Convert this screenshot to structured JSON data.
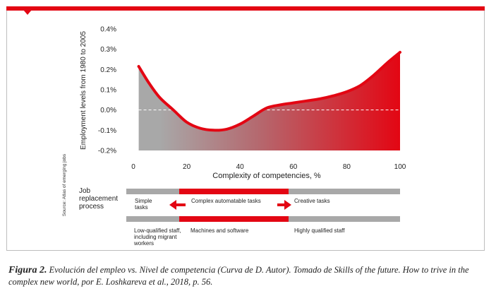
{
  "chart_data": {
    "type": "area",
    "xlabel": "Complexity of competencies, %",
    "ylabel": "Employment levels from 1980 to 2005",
    "xlim": [
      0,
      100
    ],
    "ylim": [
      -0.2,
      0.4
    ],
    "x_ticks": [
      "0",
      "20",
      "40",
      "60",
      "80",
      "100"
    ],
    "y_ticks": [
      "0.4%",
      "0.3%",
      "0.2%",
      "0.1%",
      "0.0%",
      "-0.1%",
      "-0.2%"
    ],
    "x_tick_values": [
      0,
      20,
      40,
      60,
      80,
      100
    ],
    "y_tick_values": [
      0.4,
      0.3,
      0.2,
      0.1,
      0.0,
      -0.1,
      -0.2
    ],
    "series": [
      {
        "x": [
          2,
          6,
          10,
          15,
          20,
          25,
          30,
          35,
          40,
          45,
          50,
          55,
          60,
          65,
          70,
          75,
          80,
          85,
          90,
          95,
          100
        ],
        "y": [
          0.215,
          0.13,
          0.06,
          0.0,
          -0.06,
          -0.09,
          -0.1,
          -0.095,
          -0.07,
          -0.03,
          0.01,
          0.025,
          0.035,
          0.045,
          0.055,
          0.07,
          0.09,
          0.12,
          0.17,
          0.23,
          0.285
        ]
      }
    ],
    "colors": {
      "low": "#a8a8a8",
      "high": "#e30613",
      "baseline": "#ffffff"
    }
  },
  "source_note": "Source: Atlas of emerging jobs",
  "job_replacement": {
    "title": "Job\nreplacement\nprocess",
    "tasks": {
      "simple": "Simple\ntasks",
      "complex": "Complex automatable tasks",
      "creative": "Creative tasks"
    },
    "workers": {
      "low": "Low-qualified staff,\nincluding migrant\nworkers",
      "machines": "Machines and software",
      "high": "Highly qualified staff"
    },
    "colors": {
      "gray": "#a8a8a8",
      "red": "#e30613"
    }
  },
  "caption": {
    "prefix": "Figura 2.",
    "text": " Evolución del empleo vs. Nivel de competencia (Curva de D. Autor). Tomado de Skills of the future. How to trive in the complex new world, por E. Loshkareva et al., 2018, p. 56."
  }
}
